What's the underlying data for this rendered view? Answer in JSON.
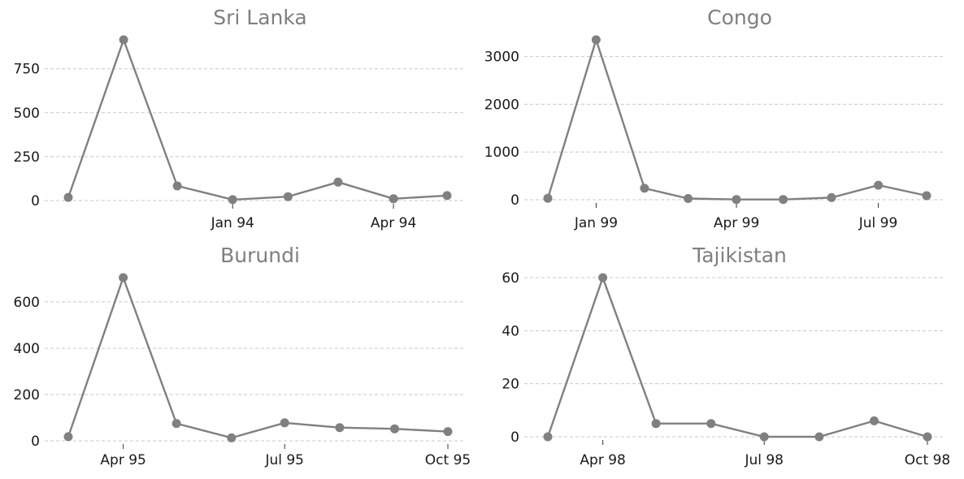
{
  "colors": {
    "series": "#808080",
    "title": "#7f7f7f",
    "grid": "#c8c8c8"
  },
  "chart_data": [
    {
      "type": "line",
      "title": "Sri Lanka",
      "x": [
        "1993-10-01",
        "1993-11-01",
        "1993-12-01",
        "1994-01-01",
        "1994-02-01",
        "1994-03-01",
        "1994-04-01",
        "1994-05-01"
      ],
      "values": [
        18,
        915,
        83,
        5,
        22,
        105,
        10,
        28
      ],
      "ylim": [
        0,
        915
      ],
      "yticks": [
        0,
        250,
        500,
        750
      ],
      "xticks": [
        {
          "value": "1994-01-01",
          "label": "Jan 94"
        },
        {
          "value": "1994-04-01",
          "label": "Apr 94"
        }
      ],
      "grid": "y"
    },
    {
      "type": "line",
      "title": "Congo",
      "x": [
        "1998-12-01",
        "1999-01-01",
        "1999-02-01",
        "1999-03-01",
        "1999-04-01",
        "1999-05-01",
        "1999-06-01",
        "1999-07-01",
        "1999-08-01"
      ],
      "values": [
        30,
        3350,
        240,
        25,
        5,
        5,
        45,
        305,
        85
      ],
      "ylim": [
        0,
        3350
      ],
      "yticks": [
        0,
        1000,
        2000,
        3000
      ],
      "xticks": [
        {
          "value": "1999-01-01",
          "label": "Jan 99"
        },
        {
          "value": "1999-04-01",
          "label": "Apr 99"
        },
        {
          "value": "1999-07-01",
          "label": "Jul 99"
        }
      ],
      "grid": "y"
    },
    {
      "type": "line",
      "title": "Burundi",
      "x": [
        "1995-03-01",
        "1995-04-01",
        "1995-05-01",
        "1995-06-01",
        "1995-07-01",
        "1995-08-01",
        "1995-09-01",
        "1995-10-01"
      ],
      "values": [
        18,
        705,
        75,
        13,
        78,
        57,
        52,
        40
      ],
      "ylim": [
        0,
        705
      ],
      "yticks": [
        0,
        200,
        400,
        600
      ],
      "xticks": [
        {
          "value": "1995-04-01",
          "label": "Apr 95"
        },
        {
          "value": "1995-07-01",
          "label": "Jul 95"
        },
        {
          "value": "1995-10-01",
          "label": "Oct 95"
        }
      ],
      "grid": "y"
    },
    {
      "type": "line",
      "title": "Tajikistan",
      "x": [
        "1998-03-01",
        "1998-04-01",
        "1998-05-01",
        "1998-06-01",
        "1998-07-01",
        "1998-08-01",
        "1998-09-01",
        "1998-10-01"
      ],
      "values": [
        0,
        60,
        5,
        5,
        0,
        0,
        6,
        0
      ],
      "ylim": [
        0,
        60
      ],
      "yticks": [
        0,
        20,
        40,
        60
      ],
      "xticks": [
        {
          "value": "1998-04-01",
          "label": "Apr 98"
        },
        {
          "value": "1998-07-01",
          "label": "Jul 98"
        },
        {
          "value": "1998-10-01",
          "label": "Oct 98"
        }
      ],
      "grid": "y"
    }
  ]
}
